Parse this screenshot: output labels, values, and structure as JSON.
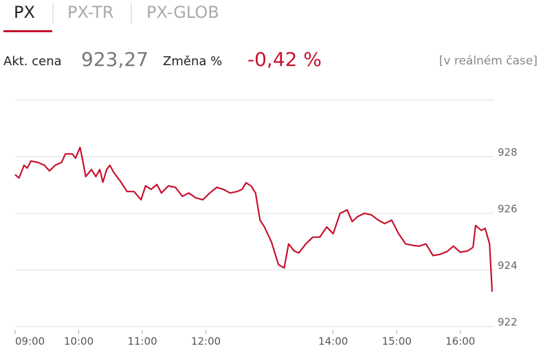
{
  "tabs": [
    "PX",
    "PX-TR",
    "PX-GLOB"
  ],
  "quote": {
    "price_label": "Akt. cena",
    "price": "923,27",
    "change_label": "Změna %",
    "change": "-0,42 %",
    "status": "[v reálném čase]"
  },
  "chart_data": {
    "type": "line",
    "color": "#c8102e",
    "grid": true,
    "xlim": [
      9,
      16.5
    ],
    "ylim": [
      922,
      930
    ],
    "xticks": [
      {
        "value": 9,
        "label": "09:00"
      },
      {
        "value": 10,
        "label": "10:00"
      },
      {
        "value": 11,
        "label": "11:00"
      },
      {
        "value": 12,
        "label": "12:00"
      },
      {
        "value": 14,
        "label": "14:00"
      },
      {
        "value": 15,
        "label": "15:00"
      },
      {
        "value": 16,
        "label": "16:00"
      }
    ],
    "yticks": [
      922,
      924,
      926,
      928
    ],
    "x": [
      9.0,
      9.06,
      9.14,
      9.19,
      9.25,
      9.36,
      9.46,
      9.54,
      9.63,
      9.73,
      9.79,
      9.9,
      9.95,
      10.02,
      10.06,
      10.11,
      10.2,
      10.27,
      10.33,
      10.38,
      10.44,
      10.49,
      10.55,
      10.65,
      10.76,
      10.87,
      10.98,
      11.05,
      11.14,
      11.23,
      11.3,
      11.41,
      11.52,
      11.63,
      11.73,
      11.84,
      11.95,
      12.06,
      12.17,
      12.27,
      12.38,
      12.49,
      12.57,
      12.63,
      12.71,
      12.78,
      12.85,
      12.92,
      13.03,
      13.14,
      13.23,
      13.3,
      13.39,
      13.46,
      13.57,
      13.68,
      13.79,
      13.9,
      14.0,
      14.11,
      14.22,
      14.3,
      14.38,
      14.49,
      14.6,
      14.71,
      14.81,
      14.92,
      15.03,
      15.14,
      15.25,
      15.35,
      15.46,
      15.57,
      15.68,
      15.79,
      15.89,
      16.0,
      16.11,
      16.2,
      16.24,
      16.33,
      16.39,
      16.46,
      16.5
    ],
    "values": [
      927.37,
      927.25,
      927.7,
      927.6,
      927.85,
      927.8,
      927.7,
      927.5,
      927.7,
      927.8,
      928.1,
      928.1,
      927.95,
      928.33,
      927.9,
      927.3,
      927.55,
      927.3,
      927.55,
      927.1,
      927.55,
      927.7,
      927.45,
      927.15,
      926.77,
      926.77,
      926.48,
      926.97,
      926.85,
      927.02,
      926.72,
      926.97,
      926.92,
      926.6,
      926.72,
      926.55,
      926.48,
      926.72,
      926.92,
      926.85,
      926.72,
      926.77,
      926.85,
      927.08,
      926.97,
      926.72,
      925.76,
      925.52,
      924.99,
      924.19,
      924.07,
      924.92,
      924.67,
      924.6,
      924.92,
      925.16,
      925.16,
      925.52,
      925.28,
      926.0,
      926.12,
      925.71,
      925.88,
      926.0,
      925.95,
      925.76,
      925.64,
      925.76,
      925.28,
      924.92,
      924.87,
      924.84,
      924.92,
      924.51,
      924.55,
      924.65,
      924.84,
      924.63,
      924.67,
      924.8,
      925.57,
      925.4,
      925.47,
      924.92,
      923.23
    ]
  }
}
